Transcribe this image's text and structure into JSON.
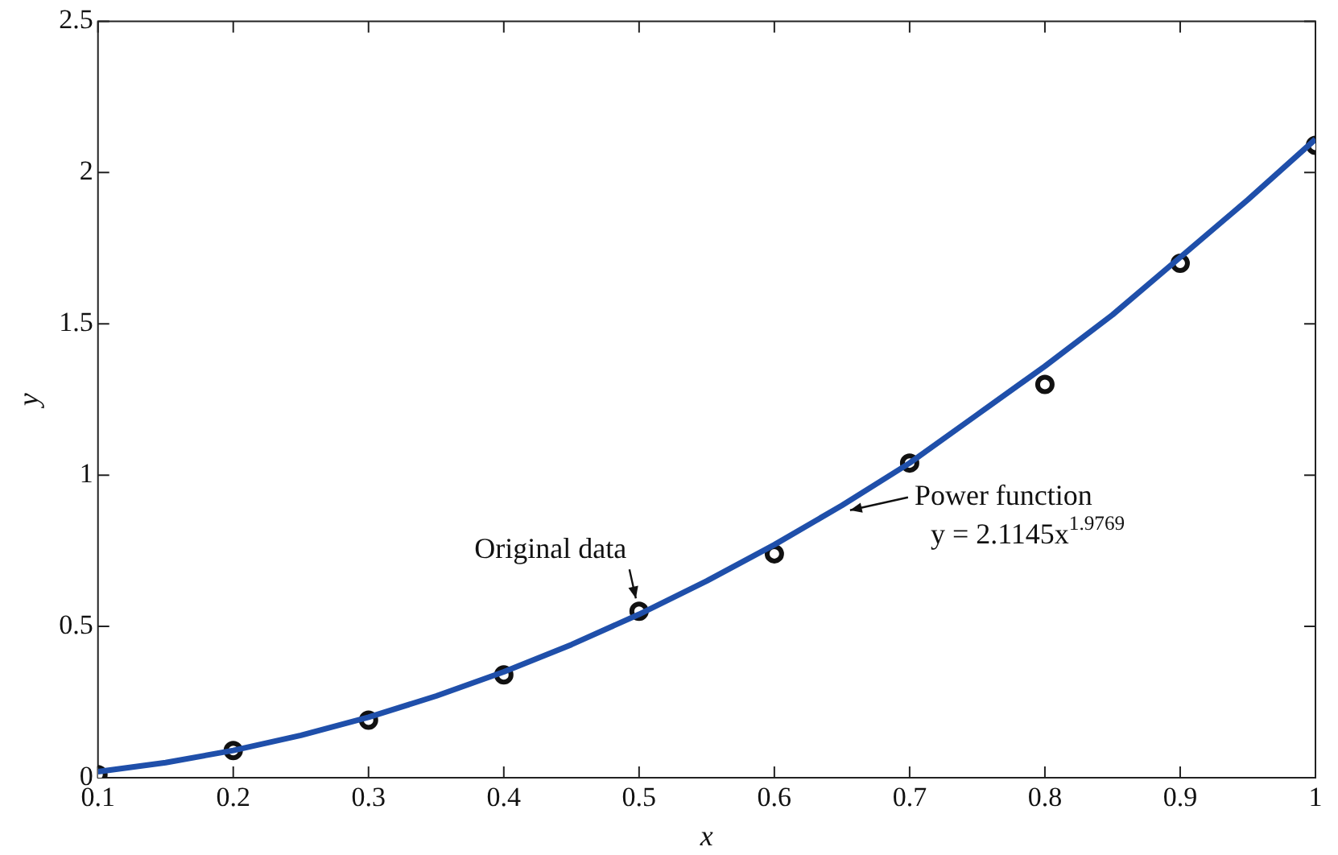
{
  "chart_data": {
    "type": "scatter",
    "xlabel": "x",
    "ylabel": "y",
    "xlim": [
      0.1,
      1.0
    ],
    "ylim": [
      0,
      2.5
    ],
    "xticks": [
      0.1,
      0.2,
      0.3,
      0.4,
      0.5,
      0.6,
      0.7,
      0.8,
      0.9,
      1
    ],
    "yticks": [
      0,
      0.5,
      1,
      1.5,
      2,
      2.5
    ],
    "grid": false,
    "marker": "circle",
    "series": [
      {
        "type": "line",
        "marker": "none",
        "color": "#1f4faa",
        "x": [
          0.1,
          0.15,
          0.2,
          0.25,
          0.3,
          0.35,
          0.4,
          0.45,
          0.5,
          0.55,
          0.6,
          0.65,
          0.7,
          0.75,
          0.8,
          0.85,
          0.9,
          0.95,
          1.0
        ],
        "values": [
          0.02,
          0.05,
          0.09,
          0.14,
          0.2,
          0.27,
          0.35,
          0.44,
          0.54,
          0.65,
          0.77,
          0.9,
          1.04,
          1.2,
          1.36,
          1.53,
          1.72,
          1.91,
          2.11
        ]
      },
      {
        "color": "#111111",
        "x": [
          0.1,
          0.2,
          0.3,
          0.4,
          0.5,
          0.6,
          0.7,
          0.8,
          0.9,
          1.0
        ],
        "values": [
          0.01,
          0.09,
          0.19,
          0.34,
          0.55,
          0.74,
          1.04,
          1.3,
          1.7,
          2.09
        ]
      }
    ],
    "annotations": [
      {
        "text": "Original data",
        "x": 0.5,
        "y": 0.55
      },
      {
        "text": "Power function\ny = 2.1145x$^{1.9769}$",
        "x": 0.65,
        "y": 0.9
      }
    ]
  }
}
